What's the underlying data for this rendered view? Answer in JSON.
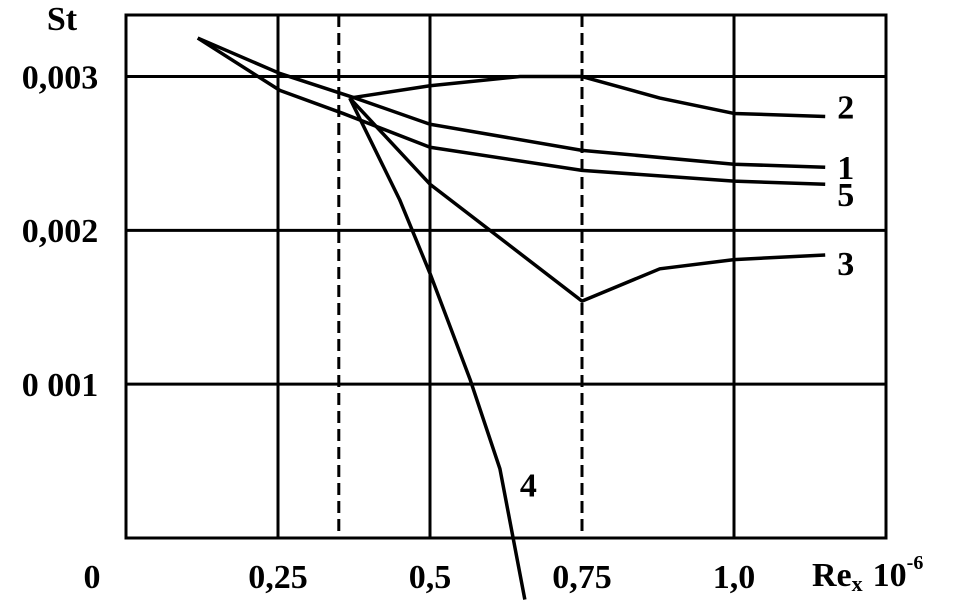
{
  "chart_data": {
    "type": "line",
    "y_label": "St",
    "x_label": "Re",
    "x_label_sub": "x",
    "x_label_factor": "10",
    "x_label_exp": "-6",
    "xlim": [
      0,
      1.25
    ],
    "ylim": [
      0,
      0.0034
    ],
    "xticks": [
      {
        "value": 0,
        "label": "0"
      },
      {
        "value": 0.25,
        "label": "0,25"
      },
      {
        "value": 0.5,
        "label": "0,5"
      },
      {
        "value": 0.75,
        "label": "0,75"
      },
      {
        "value": 1.0,
        "label": "1,0"
      }
    ],
    "yticks": [
      {
        "value": 0.001,
        "label": "0 001"
      },
      {
        "value": 0.002,
        "label": "0,002"
      },
      {
        "value": 0.003,
        "label": "0,003"
      }
    ],
    "dashed_lines": [
      0.35,
      0.75
    ],
    "grid": true,
    "color": "#000000",
    "series": [
      {
        "name": "1",
        "x": [
          0.118,
          0.253,
          0.377,
          0.5,
          0.75,
          1.0,
          1.15
        ],
        "values": [
          0.00325,
          0.00302,
          0.00286,
          0.00269,
          0.00252,
          0.00243,
          0.00241
        ]
      },
      {
        "name": "2",
        "x": [
          0.368,
          0.5,
          0.648,
          0.75,
          0.878,
          1.0,
          1.15
        ],
        "values": [
          0.00286,
          0.00294,
          0.003,
          0.003,
          0.00286,
          0.00276,
          0.00274
        ]
      },
      {
        "name": "3",
        "x": [
          0.368,
          0.5,
          0.75,
          0.878,
          1.0,
          1.15
        ],
        "values": [
          0.00286,
          0.0023,
          0.00154,
          0.00175,
          0.00181,
          0.00184
        ]
      },
      {
        "name": "4",
        "x": [
          0.368,
          0.45,
          0.5,
          0.566,
          0.615,
          0.656
        ],
        "values": [
          0.00286,
          0.0022,
          0.00172,
          0.00103,
          0.00045,
          -0.0004
        ]
      },
      {
        "name": "5",
        "x": [
          0.118,
          0.253,
          0.357,
          0.5,
          0.75,
          1.0,
          1.15
        ],
        "values": [
          0.00325,
          0.00291,
          0.00276,
          0.00254,
          0.00239,
          0.00232,
          0.0023
        ]
      }
    ]
  }
}
